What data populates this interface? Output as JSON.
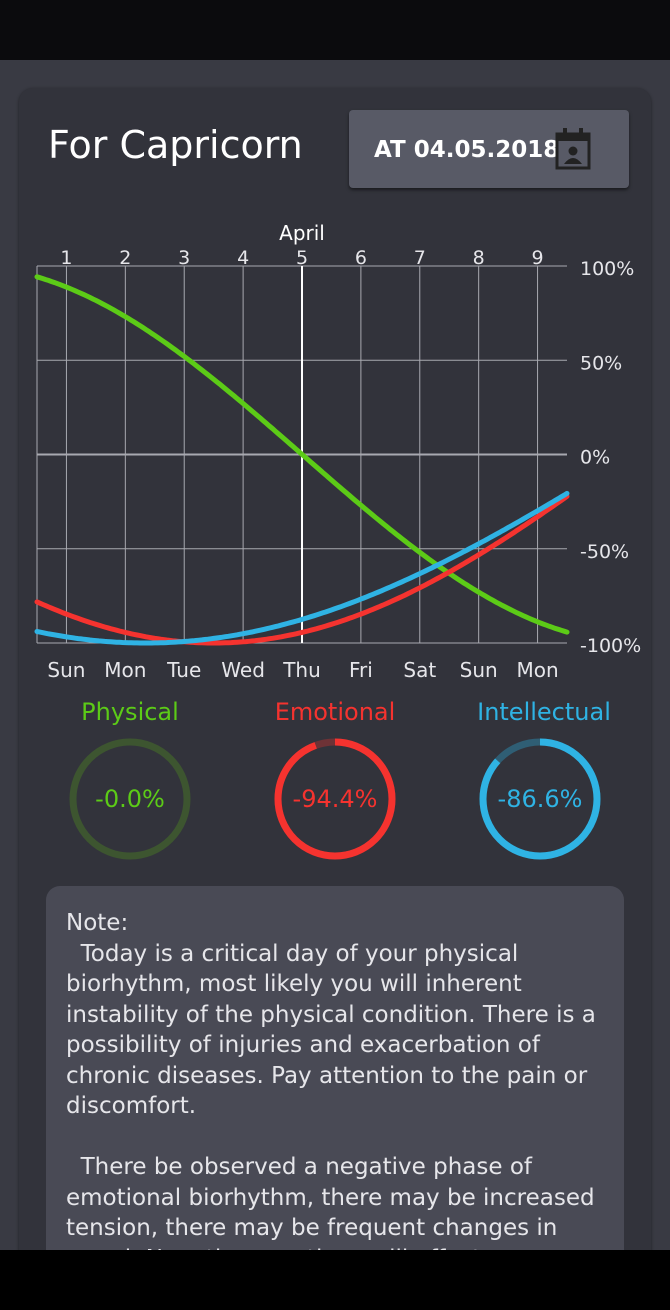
{
  "header": {
    "title": "For Capricorn",
    "date_button_label": "AT 04.05.2018"
  },
  "colors": {
    "physical": "#5ccb17",
    "emotional": "#f5332f",
    "intellectual": "#2fb3e4",
    "grid": "#a8a9b0"
  },
  "chart_data": {
    "type": "line",
    "month_label": "April",
    "x": [
      0.5,
      1,
      2,
      3,
      4,
      5,
      6,
      7,
      8,
      9,
      9.5
    ],
    "day_numbers": [
      "1",
      "2",
      "3",
      "4",
      "5",
      "6",
      "7",
      "8",
      "9"
    ],
    "weekdays": [
      "Sun",
      "Mon",
      "Tue",
      "Wed",
      "Thu",
      "Fri",
      "Sat",
      "Sun",
      "Mon"
    ],
    "y_ticks": [
      "100%",
      "50%",
      "0%",
      "-50%",
      "-100%"
    ],
    "ylim": [
      -100,
      100
    ],
    "xlim": [
      0.5,
      9.5
    ],
    "today": 5,
    "grid": true,
    "series": [
      {
        "name": "Physical",
        "period": 23,
        "values": [
          94,
          90,
          73,
          52,
          27,
          0,
          -27,
          -52,
          -73,
          -89,
          -94
        ]
      },
      {
        "name": "Emotional",
        "period": 28,
        "values": [
          -79,
          -90,
          -97,
          -100,
          -97,
          -94,
          -85,
          -71,
          -55,
          -35,
          -23
        ]
      },
      {
        "name": "Intellectual",
        "period": 33,
        "values": [
          -95,
          -98,
          -100,
          -99,
          -95,
          -87,
          -76,
          -63,
          -48,
          -32,
          -20
        ]
      }
    ]
  },
  "indicators": [
    {
      "label": "Physical",
      "value": -0.0,
      "display": "-0.0%"
    },
    {
      "label": "Emotional",
      "value": -94.4,
      "display": "-94.4%"
    },
    {
      "label": "Intellectual",
      "value": -86.6,
      "display": "-86.6%"
    }
  ],
  "note": {
    "heading": "Note:",
    "paragraphs": [
      "  Today is a critical day of your physical biorhythm, most likely you will inherent instability of the physical condition. There is a possibility of injuries and exacerbation of chronic diseases. Pay attention to the pain or discomfort.",
      "  There be observed a negative phase of emotional biorhythm, there may be increased tension, there may be frequent changes in mood. Negative emotions will affect judgment."
    ]
  }
}
